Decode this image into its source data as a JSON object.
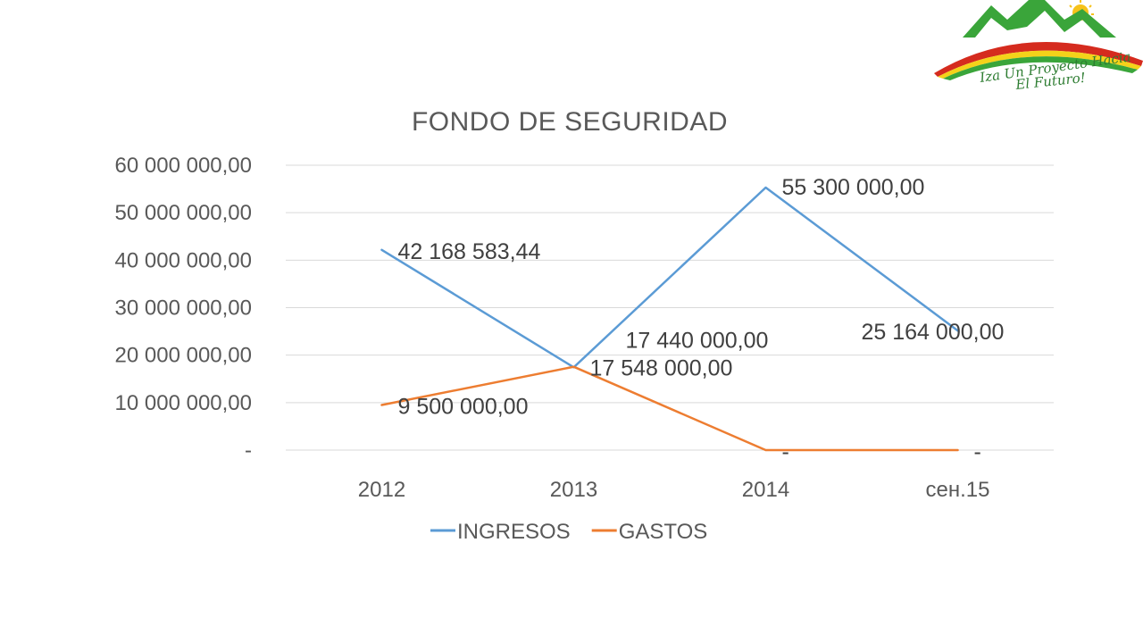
{
  "logo": {
    "line1": "Iza Un Proyecto Hacia",
    "line2": "El Futuro!",
    "colors": {
      "green": "#3aa53a",
      "red": "#d52b1e",
      "yellow": "#f4d21a",
      "sun": "#f6c21a"
    }
  },
  "chart_data": {
    "type": "line",
    "title": "FONDO DE SEGURIDAD",
    "xlabel": "",
    "ylabel": "",
    "categories": [
      "2012",
      "2013",
      "2014",
      "сен.15"
    ],
    "ylim": [
      0,
      60000000
    ],
    "yticks": [
      0,
      10000000,
      20000000,
      30000000,
      40000000,
      50000000,
      60000000
    ],
    "ytick_labels": [
      "-",
      "10 000 000,00",
      "20 000 000,00",
      "30 000 000,00",
      "40 000 000,00",
      "50 000 000,00",
      "60 000 000,00"
    ],
    "grid": true,
    "legend_position": "bottom",
    "series": [
      {
        "name": "INGRESOS",
        "color": "#5b9bd5",
        "values": [
          42168583.44,
          17440000,
          55300000,
          25164000
        ],
        "labels": [
          "42 168 583,44",
          "17 440 000,00",
          "55 300 000,00",
          "25 164 000,00"
        ]
      },
      {
        "name": "GASTOS",
        "color": "#ed7d31",
        "values": [
          9500000,
          17548000,
          0,
          0
        ],
        "labels": [
          "9 500 000,00",
          "17 548 000,00",
          "-",
          "-"
        ]
      }
    ]
  }
}
